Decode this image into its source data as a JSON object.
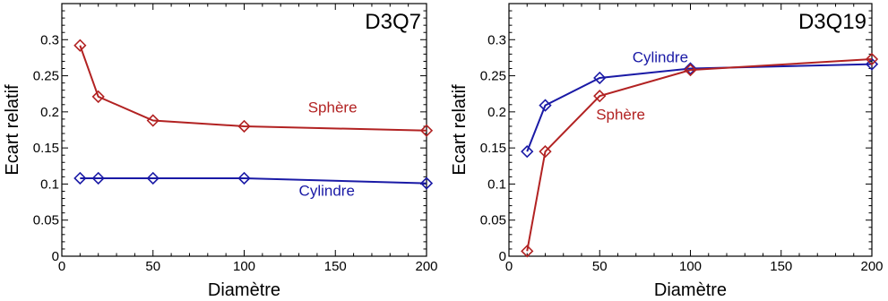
{
  "chart_data": [
    {
      "type": "line",
      "title": "D3Q7",
      "xlabel": "Diamètre",
      "ylabel": "Ecart relatif",
      "xlim": [
        0,
        200
      ],
      "ylim": [
        0,
        0.35
      ],
      "xticks": [
        0,
        50,
        100,
        150,
        200
      ],
      "yticks": [
        0,
        0.05,
        0.1,
        0.15,
        0.2,
        0.25,
        0.3
      ],
      "xtick_labels": [
        "0",
        "50",
        "100",
        "150",
        "200"
      ],
      "ytick_labels": [
        "0",
        "0.05",
        "0.1",
        "0.15",
        "0.2",
        "0.25",
        "0.3"
      ],
      "grid": false,
      "series": [
        {
          "name": "Sphère",
          "color": "#b22222",
          "marker": "diamond",
          "x": [
            10,
            20,
            50,
            100,
            200
          ],
          "y": [
            0.292,
            0.221,
            0.188,
            0.18,
            0.174
          ],
          "label_at": [
            135,
            0.199
          ]
        },
        {
          "name": "Cylindre",
          "color": "#1a1aa6",
          "marker": "diamond",
          "x": [
            10,
            20,
            50,
            100,
            200
          ],
          "y": [
            0.108,
            0.108,
            0.108,
            0.108,
            0.101
          ],
          "label_at": [
            130,
            0.084
          ]
        }
      ]
    },
    {
      "type": "line",
      "title": "D3Q19",
      "xlabel": "Diamètre",
      "ylabel": "Ecart relatif",
      "xlim": [
        0,
        200
      ],
      "ylim": [
        0,
        0.35
      ],
      "xticks": [
        0,
        50,
        100,
        150,
        200
      ],
      "yticks": [
        0,
        0.05,
        0.1,
        0.15,
        0.2,
        0.25,
        0.3
      ],
      "xtick_labels": [
        "0",
        "50",
        "100",
        "150",
        "200"
      ],
      "ytick_labels": [
        "0",
        "0.05",
        "0.1",
        "0.15",
        "0.2",
        "0.25",
        "0.3"
      ],
      "grid": false,
      "series": [
        {
          "name": "Cylindre",
          "color": "#1a1aa6",
          "marker": "diamond",
          "x": [
            10,
            20,
            50,
            100,
            200
          ],
          "y": [
            0.145,
            0.209,
            0.247,
            0.26,
            0.266
          ],
          "label_at": [
            68,
            0.269
          ]
        },
        {
          "name": "Sphère",
          "color": "#b22222",
          "marker": "diamond",
          "x": [
            10,
            20,
            50,
            100,
            200
          ],
          "y": [
            0.007,
            0.145,
            0.222,
            0.258,
            0.273
          ],
          "label_at": [
            48,
            0.189
          ]
        }
      ]
    }
  ]
}
